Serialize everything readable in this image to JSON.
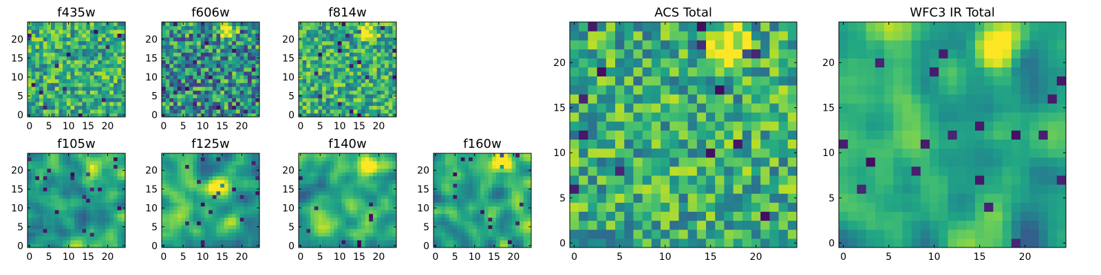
{
  "chart_data": [
    {
      "type": "heatmap",
      "title": "f435w",
      "colormap": "viridis",
      "grid_size": 25,
      "xlim": [
        0,
        25
      ],
      "ylim": [
        0,
        25
      ],
      "xticks": [
        0,
        5,
        10,
        15,
        20
      ],
      "yticks": [
        0,
        5,
        10,
        15,
        20
      ],
      "seed": 11,
      "style": "noise",
      "bright_blob": null
    },
    {
      "type": "heatmap",
      "title": "f606w",
      "colormap": "viridis",
      "grid_size": 25,
      "xlim": [
        0,
        25
      ],
      "ylim": [
        0,
        25
      ],
      "xticks": [
        0,
        5,
        10,
        15,
        20
      ],
      "yticks": [
        0,
        5,
        10,
        15,
        20
      ],
      "seed": 23,
      "style": "noise-dark",
      "bright_blob": [
        17,
        22
      ]
    },
    {
      "type": "heatmap",
      "title": "f814w",
      "colormap": "viridis",
      "grid_size": 25,
      "xlim": [
        0,
        25
      ],
      "ylim": [
        0,
        25
      ],
      "xticks": [
        0,
        5,
        10,
        15,
        20
      ],
      "yticks": [
        0,
        5,
        10,
        15,
        20
      ],
      "seed": 37,
      "style": "noise",
      "bright_blob": [
        17,
        22
      ]
    },
    {
      "type": "heatmap",
      "title": "f105w",
      "colormap": "viridis",
      "grid_size": 25,
      "xlim": [
        0,
        25
      ],
      "ylim": [
        0,
        25
      ],
      "xticks": [
        0,
        5,
        10,
        15,
        20
      ],
      "yticks": [
        0,
        5,
        10,
        15,
        20
      ],
      "seed": 41,
      "style": "smooth",
      "bright_blob": [
        16,
        21
      ]
    },
    {
      "type": "heatmap",
      "title": "f125w",
      "colormap": "viridis",
      "grid_size": 25,
      "xlim": [
        0,
        25
      ],
      "ylim": [
        0,
        25
      ],
      "xticks": [
        0,
        5,
        10,
        15,
        20
      ],
      "yticks": [
        0,
        5,
        10,
        15,
        20
      ],
      "seed": 53,
      "style": "smooth",
      "bright_blob": [
        14,
        16
      ]
    },
    {
      "type": "heatmap",
      "title": "f140w",
      "colormap": "viridis",
      "grid_size": 25,
      "xlim": [
        0,
        25
      ],
      "ylim": [
        0,
        25
      ],
      "xticks": [
        0,
        5,
        10,
        15,
        20
      ],
      "yticks": [
        0,
        5,
        10,
        15,
        20
      ],
      "seed": 67,
      "style": "smooth",
      "bright_blob": [
        17,
        21
      ]
    },
    {
      "type": "heatmap",
      "title": "f160w",
      "colormap": "viridis",
      "grid_size": 25,
      "xlim": [
        0,
        25
      ],
      "ylim": [
        0,
        25
      ],
      "xticks": [
        0,
        5,
        10,
        15,
        20
      ],
      "yticks": [
        0,
        5,
        10,
        15,
        20
      ],
      "seed": 79,
      "style": "smooth",
      "bright_blob": [
        17,
        22
      ]
    },
    {
      "type": "heatmap",
      "title": "ACS Total",
      "colormap": "viridis",
      "grid_size": 25,
      "xlim": [
        0,
        25
      ],
      "ylim": [
        0,
        25
      ],
      "xticks": [
        0,
        5,
        10,
        15,
        20
      ],
      "yticks": [
        0,
        5,
        10,
        15,
        20
      ],
      "seed": 97,
      "style": "noise",
      "bright_blob": [
        17,
        22
      ]
    },
    {
      "type": "heatmap",
      "title": "WFC3 IR Total",
      "colormap": "viridis",
      "grid_size": 25,
      "xlim": [
        0,
        25
      ],
      "ylim": [
        0,
        25
      ],
      "xticks": [
        0,
        5,
        10,
        15,
        20
      ],
      "yticks": [
        0,
        5,
        10,
        15,
        20
      ],
      "seed": 131,
      "style": "smooth",
      "bright_blob": [
        17,
        22
      ]
    }
  ]
}
